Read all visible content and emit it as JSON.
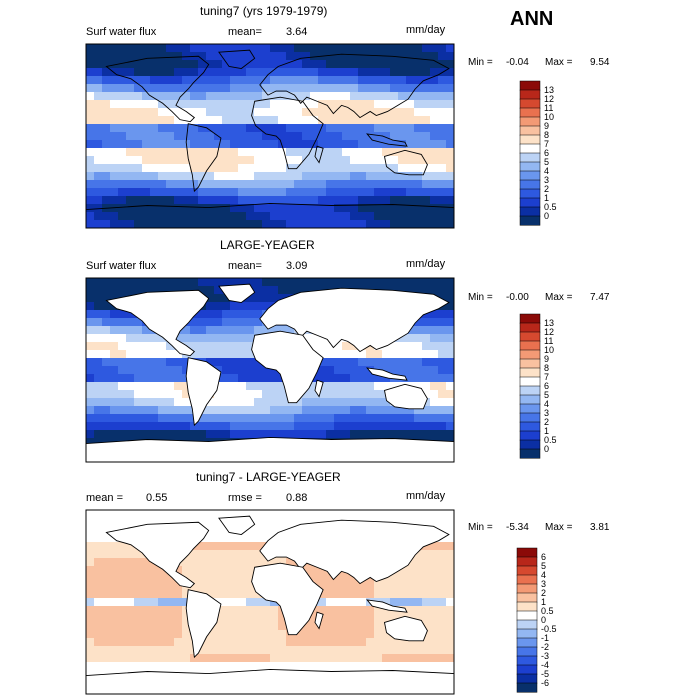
{
  "header": {
    "season": "ANN"
  },
  "palettes": {
    "abs": [
      "#08306b",
      "#0b2fa3",
      "#1c3fcf",
      "#2e59e0",
      "#4775e8",
      "#6a96ee",
      "#93b7f2",
      "#bcd3f5",
      "#ffffff",
      "#fde2c8",
      "#f9c1a0",
      "#f39a75",
      "#e9714f",
      "#d6492f",
      "#b8271a",
      "#8b0a08"
    ],
    "diff": [
      "#08306b",
      "#0b2fa3",
      "#1c3fcf",
      "#2e59e0",
      "#4775e8",
      "#6a96ee",
      "#93b7f2",
      "#bcd3f5",
      "#ffffff",
      "#fde2c8",
      "#f9c1a0",
      "#f39a75",
      "#e9714f",
      "#d6492f",
      "#b8271a",
      "#8b0a08"
    ]
  },
  "chart_data": [
    {
      "type": "heatmap",
      "title": "tuning7 (yrs 1979-1979)",
      "left_label": "Surf water flux",
      "stat_label": "mean=",
      "stat_value": "3.64",
      "units": "mm/day",
      "min_label": "Min =",
      "min_value": "-0.04",
      "max_label": "Max =",
      "max_value": "9.54",
      "colorbar_levels": [
        "13",
        "12",
        "11",
        "10",
        "9",
        "8",
        "7",
        "6",
        "5",
        "4",
        "3",
        "2",
        "1",
        "0.5",
        "0"
      ],
      "land_masked": false
    },
    {
      "type": "heatmap",
      "title": "LARGE-YEAGER",
      "left_label": "Surf water flux",
      "stat_label": "mean=",
      "stat_value": "3.09",
      "units": "mm/day",
      "min_label": "Min =",
      "min_value": "-0.00",
      "max_label": "Max =",
      "max_value": "7.47",
      "colorbar_levels": [
        "13",
        "12",
        "11",
        "10",
        "9",
        "8",
        "7",
        "6",
        "5",
        "4",
        "3",
        "2",
        "1",
        "0.5",
        "0"
      ],
      "land_masked": true
    },
    {
      "type": "heatmap",
      "title": "tuning7 - LARGE-YEAGER",
      "left_label": "mean =",
      "left_value": "0.55",
      "stat_label": "rmse =",
      "stat_value": "0.88",
      "units": "mm/day",
      "min_label": "Min =",
      "min_value": "-5.34",
      "max_label": "Max =",
      "max_value": "3.81",
      "colorbar_levels": [
        "6",
        "5",
        "4",
        "3",
        "2",
        "1",
        "0.5",
        "0",
        "-0.5",
        "-1",
        "-2",
        "-3",
        "-4",
        "-5",
        "-6"
      ],
      "land_masked": true
    }
  ]
}
